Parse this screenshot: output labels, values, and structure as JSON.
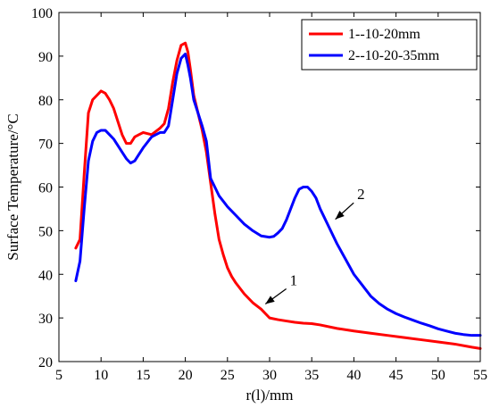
{
  "chart_data": {
    "type": "line",
    "title": "",
    "xlabel": "r(l)/mm",
    "ylabel": "Surface Temperature/°C",
    "xlim": [
      5,
      55
    ],
    "ylim": [
      20,
      100
    ],
    "xticks": [
      5,
      10,
      15,
      20,
      25,
      30,
      35,
      40,
      45,
      50,
      55
    ],
    "yticks": [
      20,
      30,
      40,
      50,
      60,
      70,
      80,
      90,
      100
    ],
    "xtick_labels": [
      "5",
      "10",
      "15",
      "20",
      "25",
      "30",
      "35",
      "40",
      "45",
      "50",
      "55"
    ],
    "ytick_labels": [
      "20",
      "30",
      "40",
      "50",
      "60",
      "70",
      "80",
      "90",
      "100"
    ],
    "grid": false,
    "legend_position": "top-right",
    "series": [
      {
        "name": "1--10-20mm",
        "color": "#ff0000",
        "x": [
          7.0,
          7.5,
          8.0,
          8.5,
          9.0,
          9.5,
          10.0,
          10.5,
          11.0,
          11.5,
          12.0,
          12.5,
          13.0,
          13.5,
          14.0,
          14.5,
          15.0,
          16.0,
          17.0,
          17.5,
          18.0,
          18.5,
          19.0,
          19.5,
          20.0,
          20.3,
          20.6,
          21.0,
          21.5,
          22.0,
          22.5,
          23.0,
          23.5,
          24.0,
          24.5,
          25.0,
          25.5,
          26.0,
          27.0,
          28.0,
          29.0,
          29.5,
          30.0,
          31.0,
          32.0,
          33.0,
          34.0,
          35.0,
          36.0,
          38.0,
          40.0,
          42.0,
          44.0,
          46.0,
          48.0,
          50.0,
          52.0,
          54.0,
          55.0
        ],
        "y": [
          46,
          48,
          63,
          77,
          80,
          81,
          82,
          81.5,
          80,
          78,
          75,
          72,
          70,
          70,
          71.5,
          72,
          72.5,
          72,
          73.5,
          74.5,
          78,
          84,
          89,
          92.5,
          93,
          91,
          87,
          81,
          77,
          73,
          68,
          61,
          54,
          48,
          44.5,
          41.5,
          39.5,
          38,
          35.5,
          33.5,
          32,
          31,
          30,
          29.6,
          29.3,
          29,
          28.8,
          28.7,
          28.4,
          27.6,
          27,
          26.5,
          26,
          25.5,
          25,
          24.5,
          24,
          23.3,
          23
        ]
      },
      {
        "name": "2--10-20-35mm",
        "color": "#0000ff",
        "x": [
          7.0,
          7.5,
          8.0,
          8.5,
          9.0,
          9.5,
          10.0,
          10.5,
          11.0,
          11.5,
          12.0,
          12.5,
          13.0,
          13.5,
          14.0,
          14.5,
          15.0,
          16.0,
          17.0,
          17.5,
          18.0,
          18.5,
          19.0,
          19.5,
          20.0,
          20.3,
          20.6,
          21.0,
          21.5,
          22.0,
          22.5,
          23.0,
          23.5,
          24.0,
          25.0,
          26.0,
          27.0,
          28.0,
          29.0,
          30.0,
          30.5,
          31.0,
          31.5,
          32.0,
          32.5,
          33.0,
          33.5,
          34.0,
          34.5,
          35.0,
          35.5,
          36.0,
          36.5,
          37.0,
          38.0,
          39.0,
          40.0,
          41.0,
          42.0,
          43.0,
          44.0,
          45.0,
          46.0,
          47.0,
          48.0,
          49.0,
          50.0,
          51.0,
          52.0,
          53.0,
          54.0,
          55.0
        ],
        "y": [
          38.5,
          43,
          55,
          66,
          70.5,
          72.5,
          73,
          73,
          72,
          71,
          69.5,
          68,
          66.5,
          65.5,
          66,
          67.5,
          69,
          71.5,
          72.5,
          72.5,
          74,
          80,
          86,
          89.5,
          90.5,
          88,
          85,
          80,
          77,
          74,
          70.5,
          62,
          60,
          58,
          55.5,
          53.5,
          51.5,
          50,
          48.8,
          48.5,
          48.7,
          49.5,
          50.5,
          52.5,
          55,
          57.5,
          59.5,
          60,
          60,
          59,
          57.5,
          55,
          53,
          51,
          47,
          43.5,
          40,
          37.5,
          35,
          33.3,
          32,
          31,
          30.2,
          29.5,
          28.8,
          28.2,
          27.5,
          27,
          26.5,
          26.2,
          26,
          26
        ]
      }
    ],
    "annotations": [
      {
        "text": "1",
        "series": 0,
        "arrow_to": [
          29.5,
          33.2
        ],
        "label_at": [
          32.4,
          37.5
        ]
      },
      {
        "text": "2",
        "series": 1,
        "arrow_to": [
          37.8,
          52.6
        ],
        "label_at": [
          40.4,
          57.2
        ]
      }
    ]
  }
}
